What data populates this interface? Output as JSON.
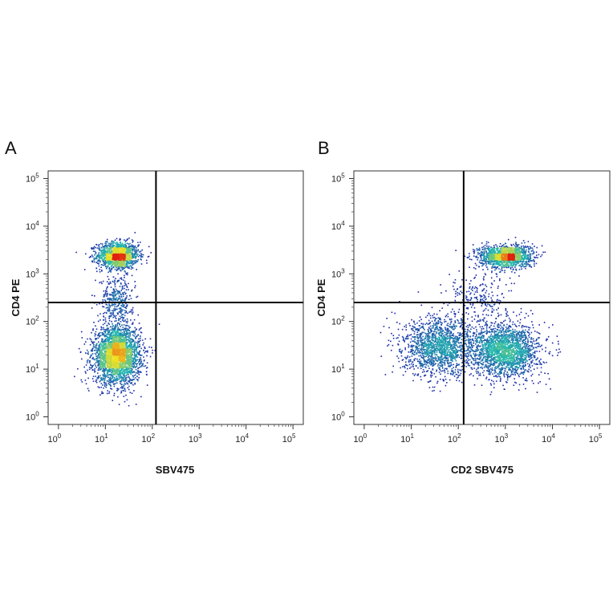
{
  "colors": {
    "density_low": "#1a1aa6",
    "density_mid": "#22b8b0",
    "density_high": "#f0e020",
    "density_peak": "#e02010",
    "gate": "#000000"
  },
  "chart_data": [
    {
      "type": "scatter",
      "panel_label": "A",
      "xlabel": "SBV475",
      "ylabel": "CD4 PE",
      "x_scale": "log",
      "y_scale": "log",
      "xlim": [
        1,
        100000
      ],
      "ylim": [
        1,
        100000
      ],
      "x_ticks": [
        {
          "base": "10",
          "exp": "0",
          "value": 1
        },
        {
          "base": "10",
          "exp": "1",
          "value": 10
        },
        {
          "base": "10",
          "exp": "2",
          "value": 100
        },
        {
          "base": "10",
          "exp": "3",
          "value": 1000
        },
        {
          "base": "10",
          "exp": "4",
          "value": 10000
        },
        {
          "base": "10",
          "exp": "5",
          "value": 100000
        }
      ],
      "y_ticks": [
        {
          "base": "10",
          "exp": "0",
          "value": 1
        },
        {
          "base": "10",
          "exp": "1",
          "value": 10
        },
        {
          "base": "10",
          "exp": "2",
          "value": 100
        },
        {
          "base": "10",
          "exp": "3",
          "value": 1000
        },
        {
          "base": "10",
          "exp": "4",
          "value": 10000
        },
        {
          "base": "10",
          "exp": "5",
          "value": 100000
        }
      ],
      "gate": {
        "x": 120,
        "y": 250
      },
      "populations": [
        {
          "x": 18,
          "y": 2500,
          "spread_x": 0.22,
          "spread_y": 0.14,
          "count": 1400
        },
        {
          "x": 17,
          "y": 20,
          "spread_x": 0.25,
          "spread_y": 0.3,
          "count": 2800
        },
        {
          "x": 17,
          "y": 300,
          "spread_x": 0.18,
          "spread_y": 0.25,
          "count": 350
        }
      ]
    },
    {
      "type": "scatter",
      "panel_label": "B",
      "xlabel": "CD2 SBV475",
      "ylabel": "CD4 PE",
      "x_scale": "log",
      "y_scale": "log",
      "xlim": [
        1,
        100000
      ],
      "ylim": [
        1,
        100000
      ],
      "x_ticks": [
        {
          "base": "10",
          "exp": "0",
          "value": 1
        },
        {
          "base": "10",
          "exp": "1",
          "value": 10
        },
        {
          "base": "10",
          "exp": "2",
          "value": 100
        },
        {
          "base": "10",
          "exp": "3",
          "value": 1000
        },
        {
          "base": "10",
          "exp": "4",
          "value": 10000
        },
        {
          "base": "10",
          "exp": "5",
          "value": 100000
        }
      ],
      "y_ticks": [
        {
          "base": "10",
          "exp": "0",
          "value": 1
        },
        {
          "base": "10",
          "exp": "1",
          "value": 10
        },
        {
          "base": "10",
          "exp": "2",
          "value": 100
        },
        {
          "base": "10",
          "exp": "3",
          "value": 1000
        },
        {
          "base": "10",
          "exp": "4",
          "value": 10000
        },
        {
          "base": "10",
          "exp": "5",
          "value": 100000
        }
      ],
      "gate": {
        "x": 130,
        "y": 250
      },
      "populations": [
        {
          "x": 1000,
          "y": 2400,
          "spread_x": 0.28,
          "spread_y": 0.12,
          "count": 1400
        },
        {
          "x": 1000,
          "y": 25,
          "spread_x": 0.35,
          "spread_y": 0.28,
          "count": 2000
        },
        {
          "x": 40,
          "y": 30,
          "spread_x": 0.4,
          "spread_y": 0.3,
          "count": 1600
        },
        {
          "x": 300,
          "y": 300,
          "spread_x": 0.35,
          "spread_y": 0.35,
          "count": 250
        }
      ]
    }
  ]
}
